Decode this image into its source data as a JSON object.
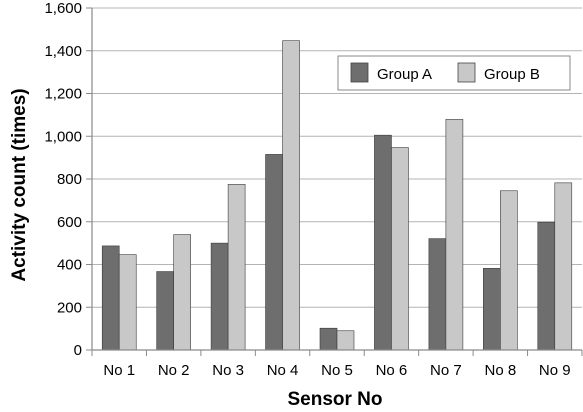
{
  "chart_data": {
    "type": "bar",
    "xlabel": "Sensor No",
    "ylabel": "Activity count (times)",
    "categories": [
      "No 1",
      "No 2",
      "No 3",
      "No 4",
      "No 5",
      "No 6",
      "No 7",
      "No 8",
      "No 9"
    ],
    "series": [
      {
        "name": "Group A",
        "color": "#6e6e6e",
        "values": [
          487,
          367,
          500,
          915,
          102,
          1005,
          521,
          382,
          598
        ]
      },
      {
        "name": "Group B",
        "color": "#c8c8c8",
        "values": [
          446,
          540,
          775,
          1447,
          90,
          947,
          1079,
          745,
          782
        ]
      }
    ],
    "ylim": [
      0,
      1600
    ],
    "yticks": [
      0,
      200,
      400,
      600,
      800,
      1000,
      1200,
      1400,
      1600
    ],
    "ytick_labels": [
      "0",
      "200",
      "400",
      "600",
      "800",
      "1,000",
      "1,200",
      "1,400",
      "1,600"
    ],
    "grid": true,
    "legend_position": "top-right"
  }
}
